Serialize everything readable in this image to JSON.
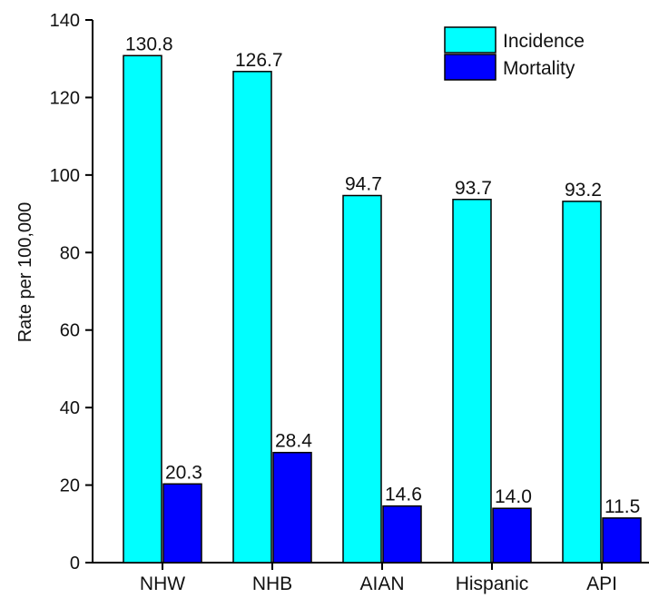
{
  "chart_data": {
    "type": "bar",
    "categories": [
      "NHW",
      "NHB",
      "AIAN",
      "Hispanic",
      "API"
    ],
    "series": [
      {
        "name": "Incidence",
        "color": "#00FFFF",
        "values": [
          130.8,
          126.7,
          94.7,
          93.7,
          93.2
        ],
        "labels": [
          "130.8",
          "126.7",
          "94.7",
          "93.7",
          "93.2"
        ]
      },
      {
        "name": "Mortality",
        "color": "#0000FF",
        "values": [
          20.3,
          28.4,
          14.6,
          14.0,
          11.5
        ],
        "labels": [
          "20.3",
          "28.4",
          "14.6",
          "14.0",
          "11.5"
        ]
      }
    ],
    "title": "",
    "xlabel": "",
    "ylabel": "Rate per 100,000",
    "ylim": [
      0,
      140
    ],
    "yticks": [
      "0",
      "20",
      "40",
      "60",
      "80",
      "100",
      "120",
      "140"
    ],
    "grid": false,
    "legend": "top-right"
  }
}
